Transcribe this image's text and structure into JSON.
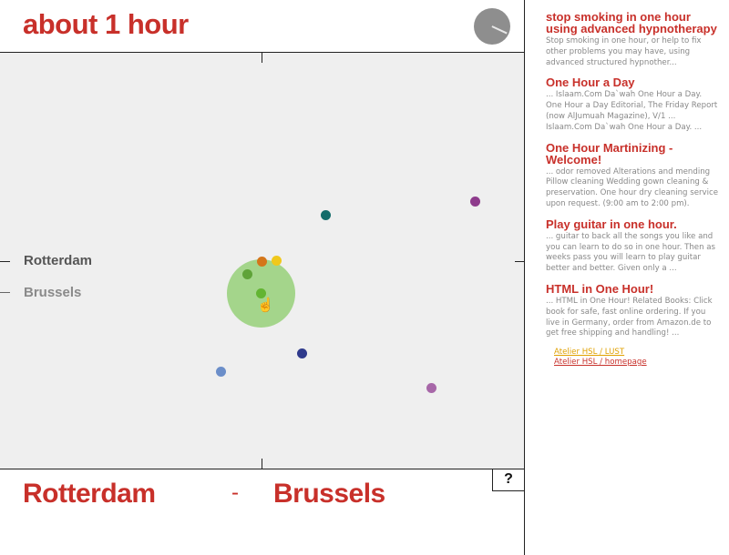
{
  "header": {
    "title": "about 1 hour"
  },
  "map": {
    "labels": {
      "rotterdam": "Rotterdam",
      "brussels": "Brussels"
    },
    "dots": [
      {
        "name": "dot-teal",
        "color": "#136c6a"
      },
      {
        "name": "dot-purple-top",
        "color": "#8e3b8c"
      },
      {
        "name": "dot-orange",
        "color": "#d4761a"
      },
      {
        "name": "dot-yellow",
        "color": "#f0c81c"
      },
      {
        "name": "dot-green-1",
        "color": "#5fa338"
      },
      {
        "name": "dot-green-2",
        "color": "#63b532"
      },
      {
        "name": "dot-navy",
        "color": "#2f3a8c"
      },
      {
        "name": "dot-lightblue",
        "color": "#6b8ec9"
      },
      {
        "name": "dot-purple-bottom",
        "color": "#a767a8"
      }
    ]
  },
  "bottom": {
    "from": "Rotterdam",
    "separator": "-",
    "to": "Brussels",
    "help": "?"
  },
  "results": [
    {
      "title": "stop smoking in one hour using advanced hypnotherapy",
      "snippet": "Stop smoking in one hour, or help to fix other problems you may have, using advanced structured hypnother..."
    },
    {
      "title": "One Hour a Day",
      "snippet": "... Islaam.Com Da`wah One Hour a Day. One Hour a Day Editorial, The Friday Report (now AlJumuah Magazine), V/1 ... Islaam.Com Da`wah One Hour a Day. ..."
    },
    {
      "title": "One Hour Martinizing - Welcome!",
      "snippet": "... odor removed Alterations and mending Pillow cleaning Wedding gown cleaning & preservation. One hour dry cleaning service upon request. (9:00 am to 2:00 pm)."
    },
    {
      "title": "Play guitar in one hour.",
      "snippet": "... guitar to back all the songs you like and you can learn to do so in one hour. Then as weeks pass you will learn to play guitar better and better. Given only a ..."
    },
    {
      "title": "HTML in One Hour!",
      "snippet": "... HTML in One Hour! Related Books: Click book for safe, fast online ordering. If you live in Germany, order from Amazon.de to get free shipping and handling! ..."
    }
  ],
  "links": [
    {
      "label": "Atelier HSL / LUST",
      "color": "#e0a000"
    },
    {
      "label": "Atelier HSL / homepage",
      "color": "#c8302a"
    }
  ]
}
